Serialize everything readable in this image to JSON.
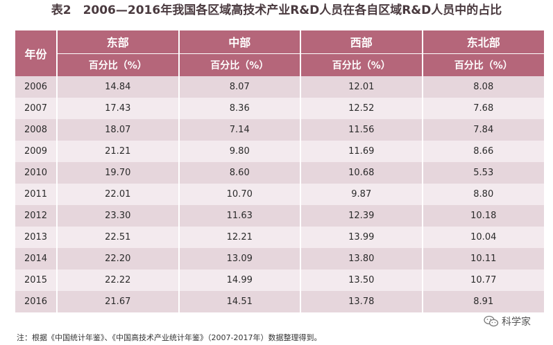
{
  "title": "表2　2006—2016年我国各区域高技术产业R&D人员在各自区域R&D人员中的占比",
  "table": {
    "year_header": "年份",
    "regions": [
      "东部",
      "中部",
      "西部",
      "东北部"
    ],
    "unit_label": "百分比（%）",
    "rows": [
      {
        "year": "2006",
        "values": [
          "14.84",
          "8.07",
          "12.01",
          "8.08"
        ]
      },
      {
        "year": "2007",
        "values": [
          "17.43",
          "8.36",
          "12.52",
          "7.68"
        ]
      },
      {
        "year": "2008",
        "values": [
          "18.07",
          "7.14",
          "11.56",
          "7.84"
        ]
      },
      {
        "year": "2009",
        "values": [
          "21.21",
          "9.80",
          "11.69",
          "8.66"
        ]
      },
      {
        "year": "2010",
        "values": [
          "19.70",
          "8.60",
          "10.68",
          "5.53"
        ]
      },
      {
        "year": "2011",
        "values": [
          "22.01",
          "10.70",
          "9.87",
          "8.80"
        ]
      },
      {
        "year": "2012",
        "values": [
          "23.30",
          "11.63",
          "12.39",
          "10.18"
        ]
      },
      {
        "year": "2013",
        "values": [
          "22.51",
          "12.21",
          "13.99",
          "10.04"
        ]
      },
      {
        "year": "2014",
        "values": [
          "22.20",
          "13.09",
          "13.80",
          "10.11"
        ]
      },
      {
        "year": "2015",
        "values": [
          "22.22",
          "14.99",
          "13.50",
          "10.77"
        ]
      },
      {
        "year": "2016",
        "values": [
          "21.67",
          "14.51",
          "13.78",
          "8.91"
        ]
      }
    ]
  },
  "note": "注：根据《中国统计年鉴》、《中国高技术产业统计年鉴》（2007-2017年）数据整理得到。",
  "watermark": {
    "text": "科学家",
    "icon": "wechat-icon"
  },
  "colors": {
    "header": "#b5667a",
    "row_dark": "#e6d6dc",
    "row_light": "#f3eaee"
  }
}
